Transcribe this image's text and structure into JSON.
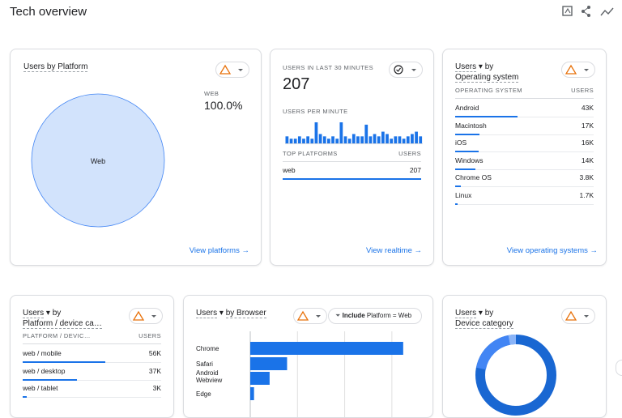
{
  "header": {
    "title": "Tech overview"
  },
  "platform_card": {
    "title": "Users by Platform",
    "legend_label": "WEB",
    "legend_value": "100.0%",
    "slice_label": "Web",
    "link": "View platforms"
  },
  "realtime_card": {
    "title": "USERS IN LAST 30 MINUTES",
    "total": "207",
    "subtitle": "USERS PER MINUTE",
    "users_per_minute": [
      3,
      2,
      2,
      3,
      2,
      3,
      2,
      9,
      4,
      3,
      2,
      3,
      2,
      9,
      3,
      2,
      4,
      3,
      3,
      8,
      3,
      4,
      3,
      5,
      4,
      2,
      3,
      3,
      2,
      3,
      4,
      5,
      3
    ],
    "table_header": [
      "TOP PLATFORMS",
      "USERS"
    ],
    "rows": [
      {
        "name": "web",
        "value": 207,
        "value_label": "207"
      }
    ],
    "link": "View realtime"
  },
  "os_card": {
    "metric": "Users",
    "by": "by",
    "dimension": "Operating system",
    "table_header": [
      "OPERATING SYSTEM",
      "USERS"
    ],
    "rows": [
      {
        "name": "Android",
        "value": 43000,
        "value_label": "43K"
      },
      {
        "name": "Macintosh",
        "value": 17000,
        "value_label": "17K"
      },
      {
        "name": "iOS",
        "value": 16000,
        "value_label": "16K"
      },
      {
        "name": "Windows",
        "value": 14000,
        "value_label": "14K"
      },
      {
        "name": "Chrome OS",
        "value": 3800,
        "value_label": "3.8K"
      },
      {
        "name": "Linux",
        "value": 1700,
        "value_label": "1.7K"
      }
    ],
    "link": "View operating systems"
  },
  "device_platform_card": {
    "metric": "Users",
    "by": "by",
    "dimension": "Platform / device ca…",
    "table_header": [
      "PLATFORM / DEVIC…",
      "USERS"
    ],
    "rows": [
      {
        "name": "web / mobile",
        "value": 56000,
        "value_label": "56K"
      },
      {
        "name": "web / desktop",
        "value": 37000,
        "value_label": "37K"
      },
      {
        "name": "web / tablet",
        "value": 3000,
        "value_label": "3K"
      }
    ]
  },
  "browser_card": {
    "metric": "Users",
    "by": "by Browser",
    "filter_verb": "Include",
    "filter_text": "Platform = Web",
    "categories": [
      "Chrome",
      "Safari",
      "Android Webview",
      "Edge"
    ],
    "values": [
      32.4,
      7.8,
      4.1,
      0.8
    ],
    "xlim": [
      0,
      35
    ],
    "xticks": [
      0,
      10,
      20,
      30
    ]
  },
  "device_card": {
    "metric": "Users",
    "by": "by",
    "dimension": "Device category"
  }
}
